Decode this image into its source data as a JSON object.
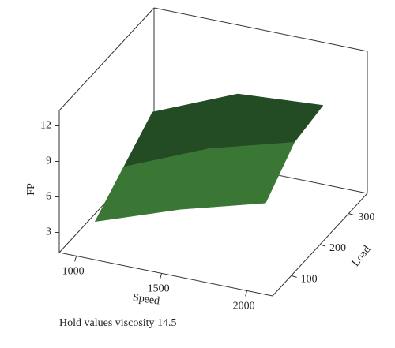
{
  "chart_data": {
    "type": "surface",
    "zlabel": "FP",
    "xlabel": "Speed",
    "ylabel": "Load",
    "note": "Hold values viscosity 14.5",
    "x": [
      1000,
      1500,
      2000
    ],
    "y": [
      100,
      200,
      300
    ],
    "z": [
      [
        2.5,
        5,
        7
      ],
      [
        4.5,
        7.5,
        9.5
      ],
      [
        6.5,
        9.5,
        10
      ]
    ],
    "color": "#3f7f3a",
    "xlim": [
      900,
      2150
    ],
    "ylim": [
      35,
      365
    ],
    "zlim": [
      1.3,
      13.3
    ],
    "xticks": [
      1000,
      1500,
      2000
    ],
    "yticks": [
      100,
      200,
      300
    ],
    "zticks": [
      3,
      6,
      9,
      12
    ]
  }
}
